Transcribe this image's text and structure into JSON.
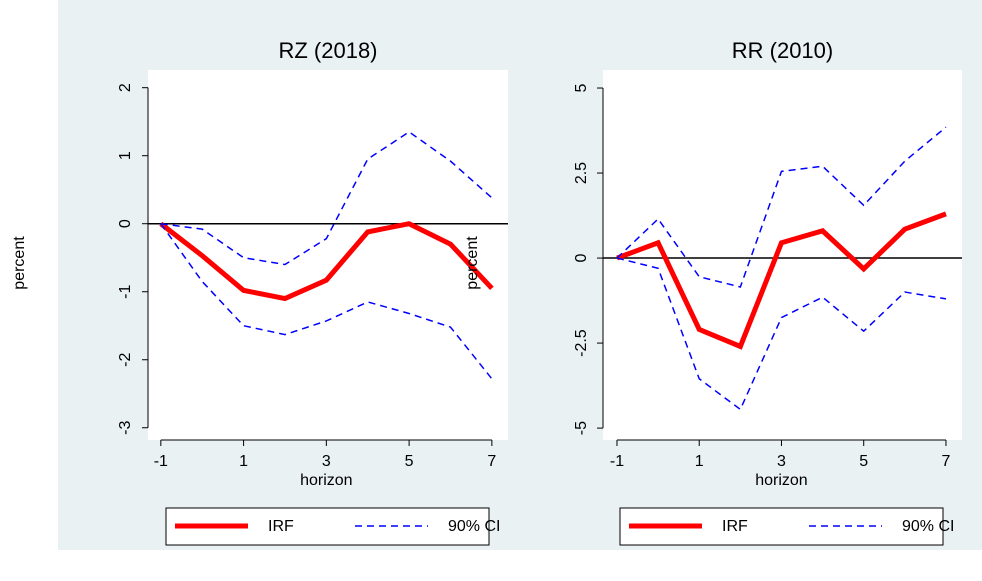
{
  "chart_data": [
    {
      "type": "line",
      "title": "RZ (2018)",
      "xlabel": "horizon",
      "ylabel": "percent",
      "x": [
        -1,
        0,
        1,
        2,
        3,
        4,
        5,
        6,
        7
      ],
      "series": [
        {
          "name": "IRF",
          "color": "#ff0000",
          "values": [
            0,
            -0.47,
            -0.98,
            -1.1,
            -0.83,
            -0.12,
            0,
            -0.3,
            -0.95
          ]
        },
        {
          "name": "90% CI",
          "color": "#0000ff",
          "dash": true,
          "values": [
            0,
            -0.08,
            -0.5,
            -0.6,
            -0.22,
            0.95,
            1.35,
            0.92,
            0.38
          ],
          "lower": [
            0,
            -0.85,
            -1.5,
            -1.63,
            -1.43,
            -1.15,
            -1.32,
            -1.52,
            -2.28
          ]
        }
      ],
      "refline": 0,
      "xlim": [
        -1.31,
        7.39
      ],
      "xticks": [
        -1,
        1,
        3,
        5,
        7
      ],
      "ylim": [
        -3.18,
        2.26
      ],
      "yticks": [
        -3,
        -2,
        -1,
        0,
        1,
        2
      ]
    },
    {
      "type": "line",
      "title": "RR (2010)",
      "xlabel": "horizon",
      "ylabel": "percent",
      "x": [
        -1,
        0,
        1,
        2,
        3,
        4,
        5,
        6,
        7
      ],
      "series": [
        {
          "name": "IRF",
          "color": "#ff0000",
          "values": [
            0,
            0.45,
            -2.1,
            -2.6,
            0.45,
            0.8,
            -0.32,
            0.85,
            1.3
          ]
        },
        {
          "name": "90% CI",
          "color": "#0000ff",
          "dash": true,
          "values": [
            0,
            1.15,
            -0.55,
            -0.85,
            2.55,
            2.7,
            1.55,
            2.85,
            3.85
          ],
          "lower": [
            0,
            -0.3,
            -3.55,
            -4.45,
            -1.75,
            -1.15,
            -2.15,
            -1.0,
            -1.2
          ]
        }
      ],
      "refline": 0,
      "xlim": [
        -1.34,
        7.39
      ],
      "xticks": [
        -1,
        1,
        3,
        5,
        7
      ],
      "ylim": [
        -5.35,
        5.53
      ],
      "yticks": [
        -5,
        -2.5,
        0,
        2.5,
        5
      ]
    }
  ]
}
